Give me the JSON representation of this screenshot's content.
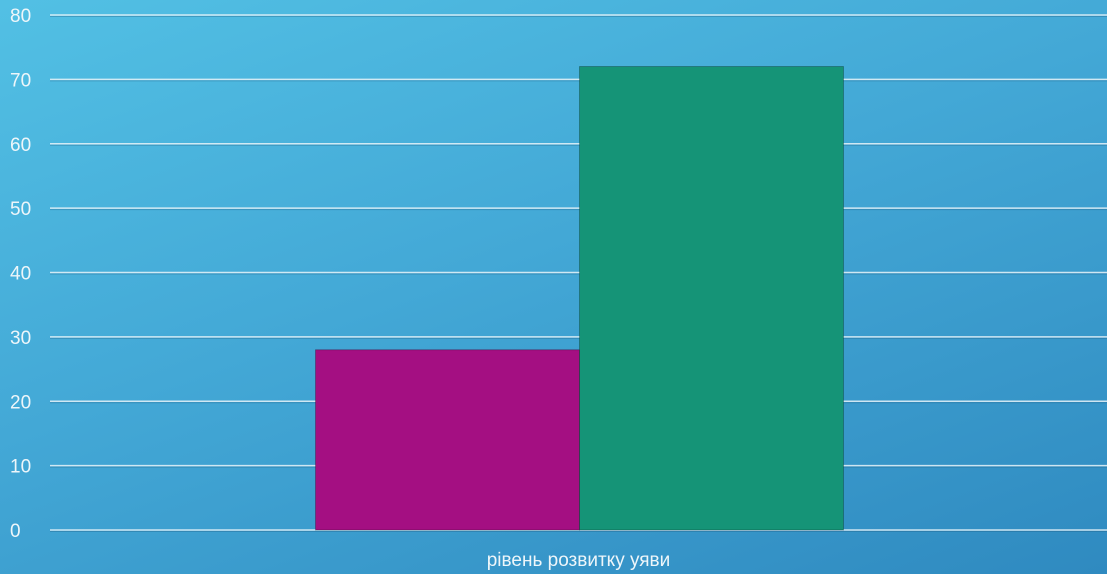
{
  "chart_data": {
    "type": "bar",
    "categories": [
      "рівень розвитку уяви"
    ],
    "series": [
      {
        "values": [
          28
        ],
        "color": "#a40f82"
      },
      {
        "values": [
          72
        ],
        "color": "#159477"
      }
    ],
    "title": "",
    "xlabel": "",
    "ylabel": "",
    "ylim": [
      0,
      80
    ],
    "yticks": [
      0,
      10,
      20,
      30,
      40,
      50,
      60,
      70,
      80
    ],
    "grid": true,
    "legend": "none"
  },
  "colors": {
    "background_top": "#52c0e4",
    "background_bottom": "#2f8ac0",
    "gridline": "#e9f4f9",
    "text": "#eef6fa"
  }
}
